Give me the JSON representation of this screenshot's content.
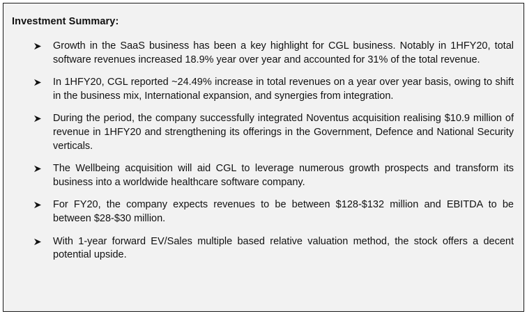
{
  "summary": {
    "heading": "Investment Summary:",
    "bullet_icon": "arrowhead-bullet-icon",
    "bullets": [
      "Growth in the SaaS business has been a key highlight for CGL business. Notably in 1HFY20, total software revenues increased 18.9% year over year and accounted for 31% of the total revenue.",
      "In 1HFY20, CGL reported ~24.49% increase in total revenues on a year over year basis, owing to shift in the business mix, International expansion, and synergies from integration.",
      "During the period, the company successfully integrated Noventus acquisition realising $10.9 million of revenue in 1HFY20 and strengthening its offerings in the Government, Defence and National Security verticals.",
      "The Wellbeing acquisition will aid CGL to leverage numerous growth prospects and transform its business into a worldwide healthcare software company.",
      "For FY20, the company expects revenues to be between $128-$132 million and EBITDA to be between $28-$30 million.",
      "With 1-year forward EV/Sales multiple based relative valuation method, the stock offers a decent potential upside."
    ]
  }
}
